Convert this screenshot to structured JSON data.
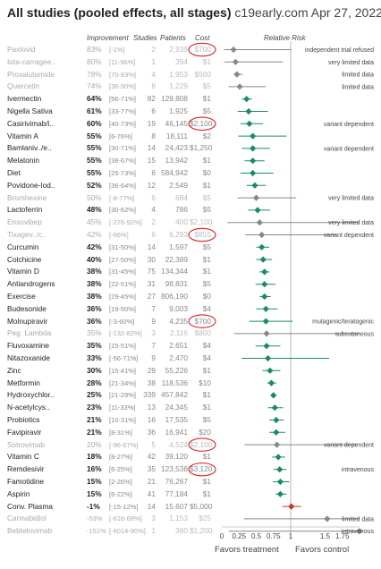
{
  "header": {
    "title": "All studies (pooled effects, all stages)",
    "source": "c19early.com Apr 27, 2022",
    "col_improvement": "Improvement",
    "col_studies": "Studies",
    "col_patients": "Patients",
    "col_cost": "Cost",
    "col_rr": "Relative Risk"
  },
  "chart_data": {
    "type": "forest",
    "title": "All studies (pooled effects, all stages)",
    "xlabel_left": "Favors treatment",
    "xlabel_right": "Favors control",
    "xlim": [
      0,
      2
    ],
    "xticks": [
      "0",
      "0.25",
      "0.5",
      "0.75",
      "1",
      "1.5",
      "1.75"
    ],
    "xtick_values": [
      0,
      0.25,
      0.5,
      0.75,
      1,
      1.5,
      1.75
    ],
    "reference_line": 1,
    "colors": {
      "supported": "#1a8a6a",
      "limited": "#888888",
      "harm": "#c0392b",
      "circle": "#d92020"
    },
    "rows": [
      {
        "name": "Paxlovid",
        "improvement": "83%",
        "ci": "[-1%]",
        "studies": "2",
        "patients": "2,939",
        "cost": "$700",
        "rr": 0.17,
        "lo": 0.03,
        "hi": 1.01,
        "dim": true,
        "circled": true,
        "note": "independent trial refused"
      },
      {
        "name": "Iota-carragee..",
        "improvement": "80%",
        "ci": "[11-96%]",
        "studies": "1",
        "patients": "394",
        "cost": "$1",
        "rr": 0.2,
        "lo": 0.04,
        "hi": 0.89,
        "dim": true,
        "note": "very limited data"
      },
      {
        "name": "Proxalutamide",
        "improvement": "78%",
        "ci": "[70-83%]",
        "studies": "4",
        "patients": "1,953",
        "cost": "$500",
        "rr": 0.22,
        "lo": 0.17,
        "hi": 0.3,
        "dim": true,
        "note": "limited data"
      },
      {
        "name": "Quercetin",
        "improvement": "74%",
        "ci": "[36-90%]",
        "studies": "8",
        "patients": "1,229",
        "cost": "$5",
        "rr": 0.26,
        "lo": 0.1,
        "hi": 0.64,
        "dim": true,
        "note": "limited data"
      },
      {
        "name": "Ivermectin",
        "improvement": "64%",
        "ci": "[56-71%]",
        "studies": "82",
        "patients": "129,808",
        "cost": "$1",
        "rr": 0.36,
        "lo": 0.29,
        "hi": 0.44
      },
      {
        "name": "Nigella Sativa",
        "improvement": "61%",
        "ci": "[33-77%]",
        "studies": "6",
        "patients": "1,925",
        "cost": "$5",
        "rr": 0.39,
        "lo": 0.23,
        "hi": 0.67
      },
      {
        "name": "Casirivimab/i..",
        "improvement": "60%",
        "ci": "[40-73%]",
        "studies": "19",
        "patients": "46,145",
        "cost": "$2,100",
        "rr": 0.4,
        "lo": 0.27,
        "hi": 0.6,
        "circled": true,
        "note": "variant dependent"
      },
      {
        "name": "Vitamin A",
        "improvement": "55%",
        "ci": "[6-76%]",
        "studies": "8",
        "patients": "18,111",
        "cost": "$2",
        "rr": 0.45,
        "lo": 0.24,
        "hi": 0.94
      },
      {
        "name": "Bamlaniv../e..",
        "improvement": "55%",
        "ci": "[30-71%]",
        "studies": "14",
        "patients": "24,423",
        "cost": "$1,250",
        "rr": 0.45,
        "lo": 0.29,
        "hi": 0.7,
        "note": "variant dependent"
      },
      {
        "name": "Melatonin",
        "improvement": "55%",
        "ci": "[38-67%]",
        "studies": "15",
        "patients": "13,942",
        "cost": "$1",
        "rr": 0.45,
        "lo": 0.33,
        "hi": 0.62
      },
      {
        "name": "Diet",
        "improvement": "55%",
        "ci": "[25-73%]",
        "studies": "6",
        "patients": "584,942",
        "cost": "$0",
        "rr": 0.45,
        "lo": 0.27,
        "hi": 0.75
      },
      {
        "name": "Povidone-Iod..",
        "improvement": "52%",
        "ci": "[36-64%]",
        "studies": "12",
        "patients": "2,549",
        "cost": "$1",
        "rr": 0.48,
        "lo": 0.36,
        "hi": 0.64
      },
      {
        "name": "Bromhexine",
        "improvement": "50%",
        "ci": "[-8-77%]",
        "studies": "6",
        "patients": "684",
        "cost": "$5",
        "rr": 0.5,
        "lo": 0.23,
        "hi": 1.08,
        "dim": true,
        "note": "very limited data"
      },
      {
        "name": "Lactoferrin",
        "improvement": "48%",
        "ci": "[30-62%]",
        "studies": "4",
        "patients": "786",
        "cost": "$5",
        "rr": 0.52,
        "lo": 0.38,
        "hi": 0.7
      },
      {
        "name": "Ensovibep",
        "improvement": "45%",
        "ci": "[-276-92%]",
        "studies": "2",
        "patients": "400",
        "cost": "$2,100",
        "rr": 0.55,
        "lo": 0.08,
        "hi": 2,
        "dim": true,
        "note": "very limited data"
      },
      {
        "name": "Tixagev../c..",
        "improvement": "42%",
        "ci": "[-66%]",
        "studies": "6",
        "patients": "6,293",
        "cost": "$855",
        "rr": 0.58,
        "lo": 0.34,
        "hi": 1.66,
        "dim": true,
        "circled": true,
        "note": "variant dependent"
      },
      {
        "name": "Curcumin",
        "improvement": "42%",
        "ci": "[31-50%]",
        "studies": "14",
        "patients": "1,597",
        "cost": "$5",
        "rr": 0.58,
        "lo": 0.5,
        "hi": 0.69
      },
      {
        "name": "Colchicine",
        "improvement": "40%",
        "ci": "[27-50%]",
        "studies": "30",
        "patients": "22,389",
        "cost": "$1",
        "rr": 0.6,
        "lo": 0.5,
        "hi": 0.73
      },
      {
        "name": "Vitamin D",
        "improvement": "38%",
        "ci": "[31-45%]",
        "studies": "75",
        "patients": "134,344",
        "cost": "$1",
        "rr": 0.62,
        "lo": 0.55,
        "hi": 0.69
      },
      {
        "name": "Antiandrogens",
        "improvement": "38%",
        "ci": "[22-51%]",
        "studies": "31",
        "patients": "98,831",
        "cost": "$5",
        "rr": 0.62,
        "lo": 0.49,
        "hi": 0.78
      },
      {
        "name": "Exercise",
        "improvement": "38%",
        "ci": "[29-45%]",
        "studies": "27",
        "patients": "806,190",
        "cost": "$0",
        "rr": 0.62,
        "lo": 0.55,
        "hi": 0.71
      },
      {
        "name": "Budesonide",
        "improvement": "36%",
        "ci": "[19-50%]",
        "studies": "7",
        "patients": "9,003",
        "cost": "$4",
        "rr": 0.64,
        "lo": 0.5,
        "hi": 0.81
      },
      {
        "name": "Molnupiravir",
        "improvement": "36%",
        "ci": "[-3-60%]",
        "studies": "9",
        "patients": "4,235",
        "cost": "$700",
        "rr": 0.64,
        "lo": 0.4,
        "hi": 1.03,
        "circled": true,
        "note": "mutagenic/teratogenic"
      },
      {
        "name": "Peg. Lambda",
        "improvement": "35%",
        "ci": "[-132-82%]",
        "studies": "3",
        "patients": "2,116",
        "cost": "$800",
        "rr": 0.65,
        "lo": 0.18,
        "hi": 2,
        "dim": true,
        "note": "subcutaneous"
      },
      {
        "name": "Fluvoxamine",
        "improvement": "35%",
        "ci": "[15-51%]",
        "studies": "7",
        "patients": "2,651",
        "cost": "$4",
        "rr": 0.65,
        "lo": 0.49,
        "hi": 0.85
      },
      {
        "name": "Nitazoxanide",
        "improvement": "33%",
        "ci": "[-56-71%]",
        "studies": "9",
        "patients": "2,470",
        "cost": "$4",
        "rr": 0.67,
        "lo": 0.29,
        "hi": 1.56
      },
      {
        "name": "Zinc",
        "improvement": "30%",
        "ci": "[15-41%]",
        "studies": "29",
        "patients": "55,226",
        "cost": "$1",
        "rr": 0.7,
        "lo": 0.59,
        "hi": 0.85
      },
      {
        "name": "Metformin",
        "improvement": "28%",
        "ci": "[21-34%]",
        "studies": "38",
        "patients": "118,536",
        "cost": "$10",
        "rr": 0.72,
        "lo": 0.66,
        "hi": 0.79
      },
      {
        "name": "Hydroxychlor..",
        "improvement": "25%",
        "ci": "[21-29%]",
        "studies": "339",
        "patients": "457,842",
        "cost": "$1",
        "rr": 0.75,
        "lo": 0.71,
        "hi": 0.79
      },
      {
        "name": "N-acetylcys..",
        "improvement": "23%",
        "ci": "[11-33%]",
        "studies": "13",
        "patients": "24,345",
        "cost": "$1",
        "rr": 0.77,
        "lo": 0.67,
        "hi": 0.89
      },
      {
        "name": "Probiotics",
        "improvement": "21%",
        "ci": "[10-31%]",
        "studies": "16",
        "patients": "17,535",
        "cost": "$5",
        "rr": 0.79,
        "lo": 0.69,
        "hi": 0.9
      },
      {
        "name": "Favipiravir",
        "improvement": "21%",
        "ci": "[8-31%]",
        "studies": "36",
        "patients": "16,941",
        "cost": "$20",
        "rr": 0.79,
        "lo": 0.69,
        "hi": 0.92
      },
      {
        "name": "Sotrovimab",
        "improvement": "20%",
        "ci": "[-96-67%]",
        "studies": "5",
        "patients": "4,524",
        "cost": "$2,100",
        "rr": 0.8,
        "lo": 0.33,
        "hi": 1.96,
        "dim": true,
        "circled": true,
        "note": "variant dependent"
      },
      {
        "name": "Vitamin C",
        "improvement": "18%",
        "ci": "[8-27%]",
        "studies": "42",
        "patients": "39,120",
        "cost": "$1",
        "rr": 0.82,
        "lo": 0.73,
        "hi": 0.92
      },
      {
        "name": "Remdesivir",
        "improvement": "16%",
        "ci": "[6-25%]",
        "studies": "35",
        "patients": "123,538",
        "cost": "$3,120",
        "rr": 0.84,
        "lo": 0.75,
        "hi": 0.94,
        "circled": true,
        "note": "intravenous"
      },
      {
        "name": "Famotidine",
        "improvement": "15%",
        "ci": "[2-26%]",
        "studies": "21",
        "patients": "76,267",
        "cost": "$1",
        "rr": 0.85,
        "lo": 0.74,
        "hi": 0.98
      },
      {
        "name": "Aspirin",
        "improvement": "15%",
        "ci": "[6-22%]",
        "studies": "41",
        "patients": "77,184",
        "cost": "$1",
        "rr": 0.85,
        "lo": 0.78,
        "hi": 0.94
      },
      {
        "name": "Conv. Plasma",
        "improvement": "-1%",
        "ci": "[-15-12%]",
        "studies": "14",
        "patients": "15,607",
        "cost": "$5,000",
        "rr": 1.01,
        "lo": 0.88,
        "hi": 1.15,
        "harm": true
      },
      {
        "name": "Cannabidiol",
        "improvement": "-53%",
        "ci": "[-616-68%]",
        "studies": "3",
        "patients": "1,153",
        "cost": "$25",
        "rr": 1.53,
        "lo": 0.32,
        "hi": 2,
        "dim": true,
        "neg": true,
        "note": "limited data"
      },
      {
        "name": "Bebtelovimab",
        "improvement": "-151%",
        "ci": "[-6014-90%]",
        "studies": "1",
        "patients": "380",
        "cost": "$1,200",
        "rr": 2,
        "lo": 0.1,
        "hi": 2,
        "dim": true,
        "neg": true,
        "note": "intravenous"
      }
    ]
  }
}
